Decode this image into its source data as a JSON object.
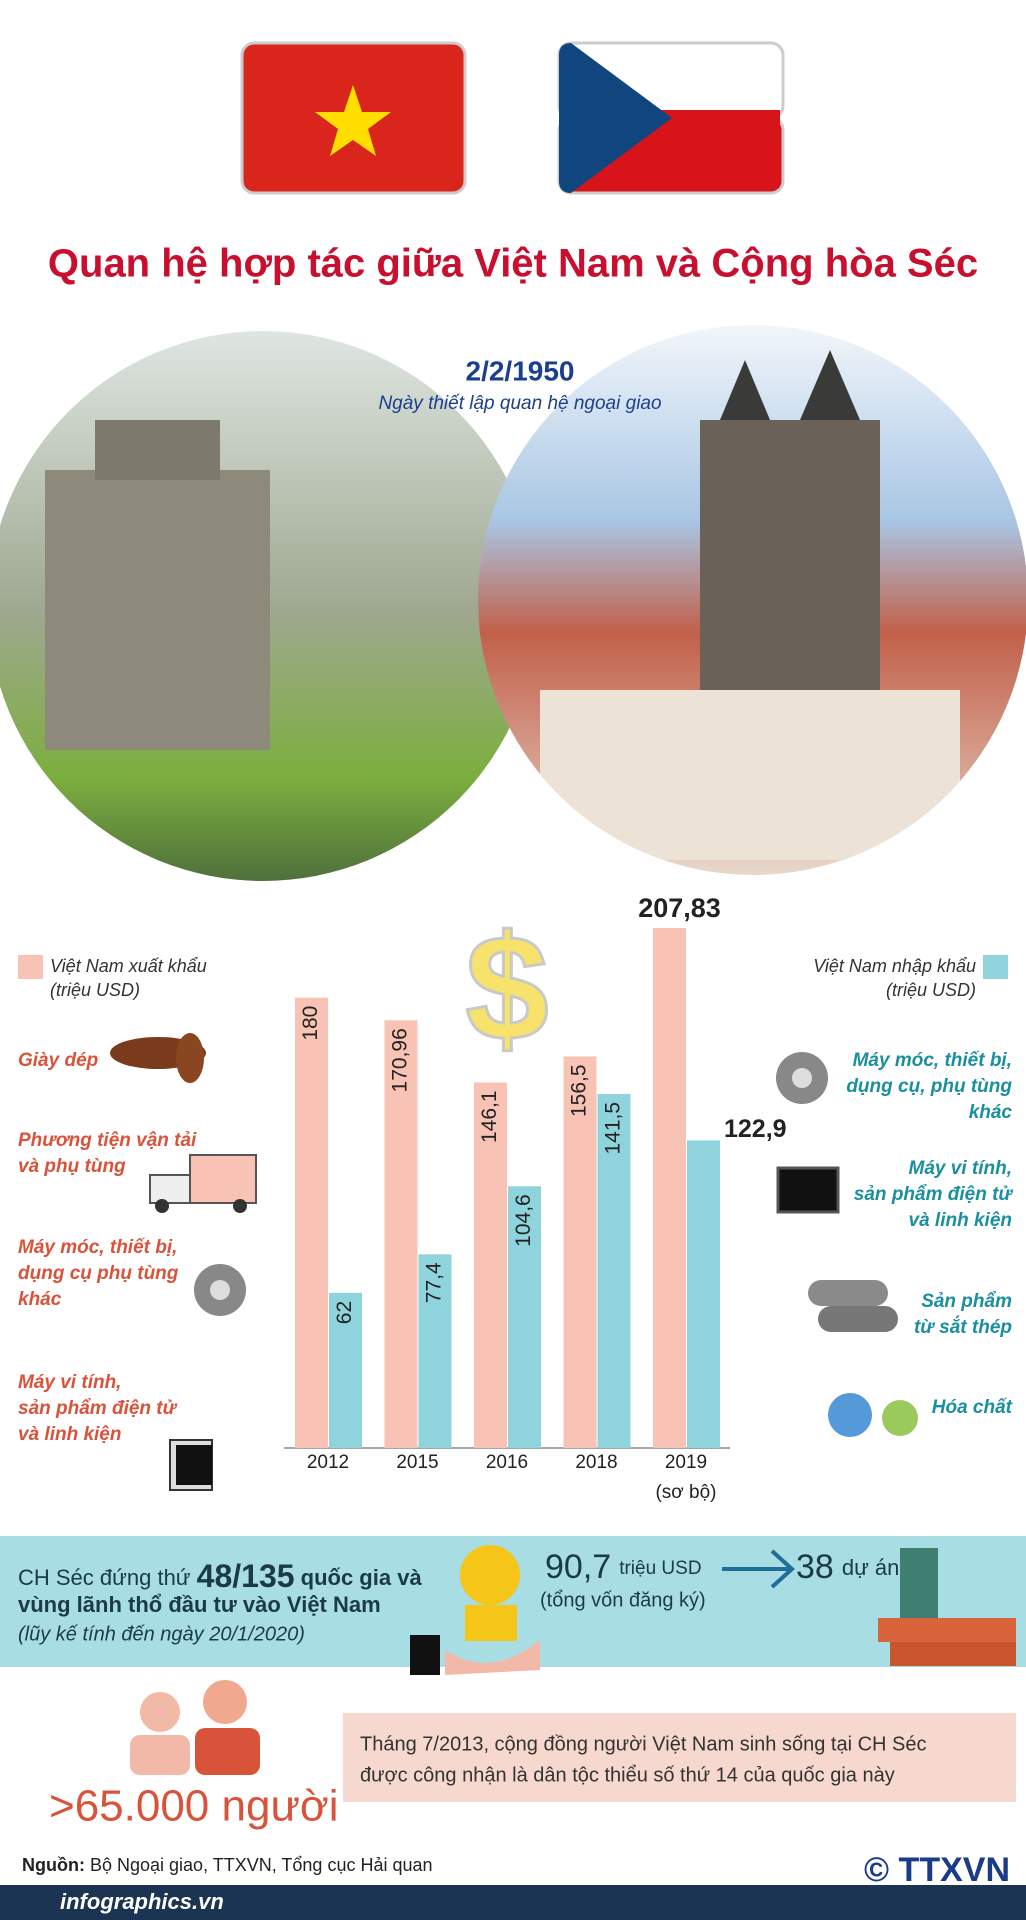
{
  "header": {
    "title": "Quan hệ hợp tác giữa Việt Nam và Cộng hòa Séc",
    "date": "2/2/1950",
    "date_caption": "Ngày thiết lập quan hệ ngoại giao"
  },
  "chart_data": {
    "type": "bar",
    "categories": [
      "2012",
      "2015",
      "2016",
      "2018",
      "2019"
    ],
    "category_notes": [
      null,
      null,
      null,
      null,
      "(sơ bộ)"
    ],
    "unit": "(triệu USD)",
    "series": [
      {
        "name": "Việt Nam xuất khẩu",
        "color": "#f8c3b5",
        "values": [
          180,
          170.96,
          146.1,
          156.5,
          207.83
        ],
        "value_labels": [
          "180",
          "170,96",
          "146,1",
          "156,5",
          "207,83"
        ]
      },
      {
        "name": "Việt Nam nhập khẩu",
        "color": "#8fd4dd",
        "values": [
          62,
          77.4,
          104.6,
          141.5,
          122.9
        ],
        "value_labels": [
          "62",
          "77,4",
          "104,6",
          "141,5",
          "122,9"
        ]
      }
    ]
  },
  "export_items": [
    [
      "Giày dép"
    ],
    [
      "Phương tiện vận tải",
      "và phụ tùng"
    ],
    [
      "Máy móc, thiết bị,",
      "dụng cụ phụ tùng",
      "khác"
    ],
    [
      "Máy vi tính,",
      "sản phẩm điện tử",
      "và linh kiện"
    ]
  ],
  "import_items": [
    [
      "Máy móc, thiết bị,",
      "dụng cụ, phụ tùng",
      "khác"
    ],
    [
      "Máy vi tính,",
      "sản phẩm điện tử",
      "và linh kiện"
    ],
    [
      "Sản phẩm",
      "từ sắt thép"
    ],
    [
      "Hóa chất"
    ]
  ],
  "investment": {
    "prefix": "CH Séc đứng thứ ",
    "rank": "48/135",
    "suffix": " quốc gia và",
    "line2": "vùng lãnh thổ đầu tư vào Việt Nam",
    "note": "(lũy kế tính đến ngày 20/1/2020)",
    "capital": "90,7",
    "capital_unit": "triệu USD",
    "capital_caption": "(tổng vốn đăng ký)",
    "projects": "38",
    "projects_unit": "dự án"
  },
  "community": {
    "count": ">65.000 người",
    "lines": [
      "Tháng 7/2013, cộng đồng người Việt Nam sinh sống tại CH Séc",
      "được công nhận là dân tộc thiểu số thứ 14 của quốc gia này"
    ]
  },
  "footer": {
    "source_label": "Nguồn:",
    "source": " Bộ Ngoại giao, TTXVN, Tổng cục Hải quan",
    "site": "infographics.vn",
    "brand": "© TTXVN"
  }
}
